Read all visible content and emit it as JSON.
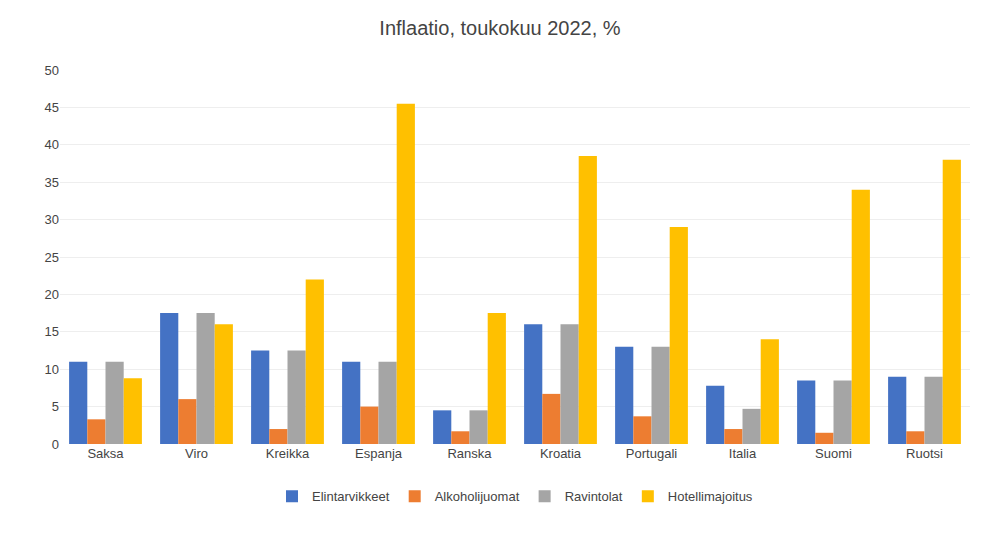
{
  "chart_data": {
    "type": "bar",
    "title": "Inflaatio, toukokuu 2022, %",
    "categories": [
      "Saksa",
      "Viro",
      "Kreikka",
      "Espanja",
      "Ranska",
      "Kroatia",
      "Portugali",
      "Italia",
      "Suomi",
      "Ruotsi"
    ],
    "series": [
      {
        "name": "Elintarvikkeet",
        "color": "#4472C4",
        "values": [
          11.0,
          17.5,
          12.5,
          11.0,
          4.5,
          16.0,
          13.0,
          7.8,
          8.5,
          9.0
        ]
      },
      {
        "name": "Alkoholijuomat",
        "color": "#ED7D31",
        "values": [
          3.3,
          6.0,
          2.0,
          5.0,
          1.7,
          6.7,
          3.7,
          2.0,
          1.5,
          1.7
        ]
      },
      {
        "name": "Ravintolat",
        "color": "#A5A5A5",
        "values": [
          11.0,
          17.5,
          12.5,
          11.0,
          4.5,
          16.0,
          13.0,
          4.7,
          8.5,
          9.0
        ]
      },
      {
        "name": "Hotellimajoitus",
        "color": "#FFC000",
        "values": [
          8.8,
          16.0,
          22.0,
          45.5,
          17.5,
          38.5,
          29.0,
          14.0,
          34.0,
          38.0
        ]
      }
    ],
    "ylim": [
      0,
      50
    ],
    "yticks": [
      0,
      5,
      10,
      15,
      20,
      25,
      30,
      35,
      40,
      45,
      50
    ],
    "grid": true,
    "legend": "bottom"
  }
}
